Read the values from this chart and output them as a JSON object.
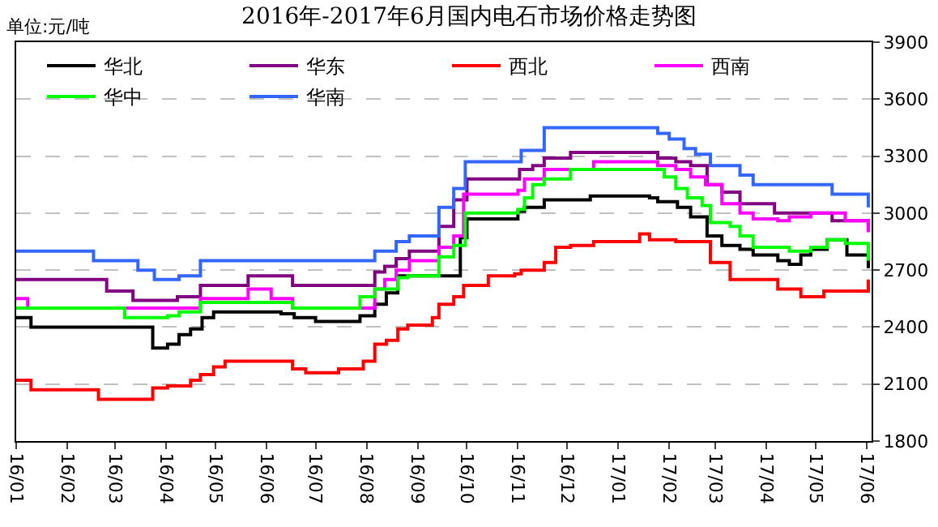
{
  "chart_data": {
    "type": "step",
    "title": "2016年-2017年6月国内电石市场价格走势图",
    "annotations": [
      "单位:元/吨"
    ],
    "legend": "top",
    "grid": "y",
    "marker": "none",
    "line_style": "solid",
    "xlim": [
      "2016-01-01",
      "2017-06-04"
    ],
    "xticks": [
      {
        "value": "2016-01-01",
        "label": "16/01"
      },
      {
        "value": "2016-02-01",
        "label": "16/02"
      },
      {
        "value": "2016-03-01",
        "label": "16/03"
      },
      {
        "value": "2016-04-01",
        "label": "16/04"
      },
      {
        "value": "2016-05-01",
        "label": "16/05"
      },
      {
        "value": "2016-06-01",
        "label": "16/06"
      },
      {
        "value": "2016-07-01",
        "label": "16/07"
      },
      {
        "value": "2016-08-01",
        "label": "16/08"
      },
      {
        "value": "2016-09-01",
        "label": "16/09"
      },
      {
        "value": "2016-10-01",
        "label": "16/10"
      },
      {
        "value": "2016-11-01",
        "label": "16/11"
      },
      {
        "value": "2016-12-01",
        "label": "16/12"
      },
      {
        "value": "2017-01-01",
        "label": "17/01"
      },
      {
        "value": "2017-02-01",
        "label": "17/02"
      },
      {
        "value": "2017-03-01",
        "label": "17/03"
      },
      {
        "value": "2017-04-01",
        "label": "17/04"
      },
      {
        "value": "2017-05-01",
        "label": "17/05"
      },
      {
        "value": "2017-06-01",
        "label": "17/06"
      }
    ],
    "ylim": [
      1800,
      3900
    ],
    "yticks": [
      1800,
      2100,
      2400,
      2700,
      3000,
      3300,
      3600,
      3900
    ],
    "series": [
      {
        "name": "华北",
        "color": "#000000",
        "x": [
          "2016-01-01",
          "2016-01-10",
          "2016-03-24",
          "2016-04-02",
          "2016-04-09",
          "2016-04-16",
          "2016-04-23",
          "2016-04-30",
          "2016-06-10",
          "2016-06-18",
          "2016-07-01",
          "2016-07-28",
          "2016-08-06",
          "2016-08-13",
          "2016-08-20",
          "2016-09-27",
          "2016-10-01",
          "2016-11-01",
          "2016-11-05",
          "2016-11-17",
          "2016-12-15",
          "2017-01-20",
          "2017-01-25",
          "2017-02-06",
          "2017-02-14",
          "2017-02-24",
          "2017-03-05",
          "2017-03-16",
          "2017-03-24",
          "2017-04-08",
          "2017-04-15",
          "2017-04-22",
          "2017-04-28",
          "2017-05-08",
          "2017-05-20",
          "2017-06-02"
        ],
        "values": [
          2450,
          2400,
          2290,
          2310,
          2360,
          2390,
          2450,
          2480,
          2470,
          2450,
          2430,
          2460,
          2520,
          2580,
          2670,
          2870,
          2970,
          3010,
          3030,
          3070,
          3090,
          3080,
          3060,
          3030,
          2980,
          2880,
          2830,
          2810,
          2780,
          2750,
          2730,
          2780,
          2810,
          2860,
          2780,
          2710
        ]
      },
      {
        "name": "华东",
        "color": "#800080",
        "x": [
          "2016-01-01",
          "2016-02-25",
          "2016-03-12",
          "2016-04-08",
          "2016-04-22",
          "2016-05-21",
          "2016-06-17",
          "2016-08-06",
          "2016-08-12",
          "2016-08-19",
          "2016-08-27",
          "2016-09-14",
          "2016-09-23",
          "2016-10-01",
          "2016-11-02",
          "2016-11-10",
          "2016-11-17",
          "2016-12-03",
          "2017-01-25",
          "2017-02-05",
          "2017-02-14",
          "2017-02-24",
          "2017-03-05",
          "2017-03-16",
          "2017-04-06",
          "2017-05-11",
          "2017-06-02"
        ],
        "values": [
          2650,
          2590,
          2540,
          2560,
          2620,
          2670,
          2620,
          2690,
          2720,
          2760,
          2800,
          2930,
          3070,
          3180,
          3230,
          3250,
          3290,
          3320,
          3290,
          3270,
          3250,
          3150,
          3110,
          3050,
          3000,
          2960,
          2900
        ]
      },
      {
        "name": "西北",
        "color": "#ff0000",
        "x": [
          "2016-01-01",
          "2016-01-10",
          "2016-02-20",
          "2016-03-24",
          "2016-04-02",
          "2016-04-16",
          "2016-04-22",
          "2016-04-30",
          "2016-05-07",
          "2016-06-17",
          "2016-06-25",
          "2016-07-15",
          "2016-07-30",
          "2016-08-06",
          "2016-08-13",
          "2016-08-20",
          "2016-08-26",
          "2016-09-10",
          "2016-09-14",
          "2016-09-23",
          "2016-09-29",
          "2016-10-14",
          "2016-10-30",
          "2016-11-03",
          "2016-11-17",
          "2016-11-24",
          "2016-12-03",
          "2016-12-17",
          "2017-01-14",
          "2017-01-20",
          "2017-02-05",
          "2017-02-26",
          "2017-03-10",
          "2017-04-08",
          "2017-04-22",
          "2017-05-06",
          "2017-06-02"
        ],
        "values": [
          2120,
          2070,
          2020,
          2080,
          2090,
          2120,
          2150,
          2190,
          2220,
          2180,
          2160,
          2180,
          2220,
          2310,
          2330,
          2390,
          2410,
          2450,
          2520,
          2560,
          2620,
          2670,
          2680,
          2700,
          2740,
          2820,
          2830,
          2850,
          2890,
          2860,
          2850,
          2740,
          2650,
          2600,
          2560,
          2590,
          2650
        ]
      },
      {
        "name": "西南",
        "color": "#ff00ff",
        "x": [
          "2016-01-01",
          "2016-01-08",
          "2016-04-22",
          "2016-05-21",
          "2016-06-04",
          "2016-06-17",
          "2016-08-06",
          "2016-08-12",
          "2016-08-19",
          "2016-08-27",
          "2016-09-14",
          "2016-09-23",
          "2016-09-29",
          "2016-11-01",
          "2016-11-05",
          "2016-11-17",
          "2016-12-17",
          "2017-01-25",
          "2017-02-05",
          "2017-02-14",
          "2017-02-23",
          "2017-03-05",
          "2017-03-16",
          "2017-03-24",
          "2017-04-08",
          "2017-04-15",
          "2017-04-28",
          "2017-05-19",
          "2017-06-02"
        ],
        "values": [
          2550,
          2500,
          2550,
          2600,
          2550,
          2500,
          2600,
          2650,
          2700,
          2750,
          2820,
          2880,
          3100,
          3120,
          3180,
          3230,
          3270,
          3250,
          3230,
          3190,
          3150,
          3050,
          3000,
          2970,
          2960,
          2980,
          3000,
          2960,
          2900
        ]
      },
      {
        "name": "华中",
        "color": "#00ff00",
        "x": [
          "2016-01-01",
          "2016-03-07",
          "2016-04-02",
          "2016-04-09",
          "2016-04-22",
          "2016-06-17",
          "2016-07-28",
          "2016-08-06",
          "2016-08-20",
          "2016-08-26",
          "2016-09-14",
          "2016-09-23",
          "2016-09-30",
          "2016-11-01",
          "2016-11-05",
          "2016-11-10",
          "2016-11-17",
          "2016-12-03",
          "2017-01-29",
          "2017-02-05",
          "2017-02-12",
          "2017-02-21",
          "2017-02-26",
          "2017-03-10",
          "2017-03-16",
          "2017-03-24",
          "2017-04-15",
          "2017-04-28",
          "2017-05-08",
          "2017-05-19",
          "2017-06-02"
        ],
        "values": [
          2500,
          2450,
          2460,
          2480,
          2530,
          2500,
          2560,
          2600,
          2660,
          2670,
          2770,
          2830,
          3000,
          3020,
          3080,
          3150,
          3180,
          3230,
          3190,
          3130,
          3080,
          3040,
          2950,
          2930,
          2880,
          2820,
          2800,
          2820,
          2860,
          2840,
          2750
        ]
      },
      {
        "name": "华南",
        "color": "#3366ff",
        "x": [
          "2016-01-01",
          "2016-02-17",
          "2016-03-15",
          "2016-03-25",
          "2016-04-09",
          "2016-04-22",
          "2016-08-06",
          "2016-08-19",
          "2016-08-27",
          "2016-09-14",
          "2016-09-23",
          "2016-09-30",
          "2016-11-03",
          "2016-11-17",
          "2017-01-25",
          "2017-02-01",
          "2017-02-10",
          "2017-02-17",
          "2017-02-26",
          "2017-03-16",
          "2017-03-24",
          "2017-05-11",
          "2017-06-02"
        ],
        "values": [
          2800,
          2750,
          2700,
          2650,
          2670,
          2750,
          2800,
          2850,
          2880,
          3030,
          3130,
          3270,
          3330,
          3450,
          3420,
          3390,
          3340,
          3310,
          3250,
          3200,
          3150,
          3100,
          3030
        ]
      }
    ]
  }
}
